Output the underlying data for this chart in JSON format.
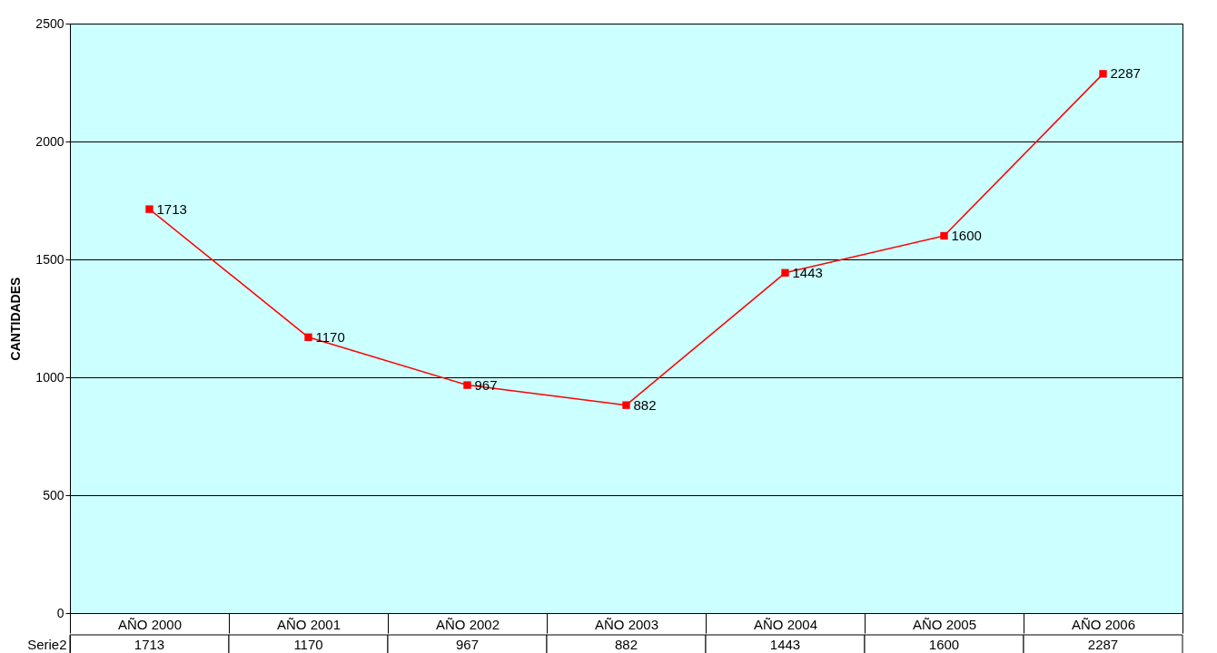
{
  "chart_data": {
    "type": "line",
    "ylabel": "CANTIDADES",
    "categories": [
      "AÑO 2000",
      "AÑO 2001",
      "AÑO 2002",
      "AÑO 2003",
      "AÑO 2004",
      "AÑO 2005",
      "AÑO 2006"
    ],
    "series": [
      {
        "name": "Serie2",
        "color": "#ff0000",
        "values": [
          1713,
          1170,
          967,
          882,
          1443,
          1600,
          2287
        ]
      }
    ],
    "annotations": [
      {
        "text": "1713",
        "x": "AÑO 2000",
        "y": 1713
      },
      {
        "text": "1170",
        "x": "AÑO 2001",
        "y": 1170
      },
      {
        "text": "967",
        "x": "AÑO 2002",
        "y": 967
      },
      {
        "text": "882",
        "x": "AÑO 2003",
        "y": 882
      },
      {
        "text": "1443",
        "x": "AÑO 2004",
        "y": 1443
      },
      {
        "text": "1600",
        "x": "AÑO 2005",
        "y": 1600
      },
      {
        "text": "2287",
        "x": "AÑO 2006",
        "y": 2287
      }
    ],
    "ylim": [
      0,
      2500
    ],
    "yticks": [
      0,
      500,
      1000,
      1500,
      2000,
      2500
    ],
    "grid": "y",
    "marker": "square",
    "line_style": "solid",
    "data_labels": true,
    "legend": false
  }
}
